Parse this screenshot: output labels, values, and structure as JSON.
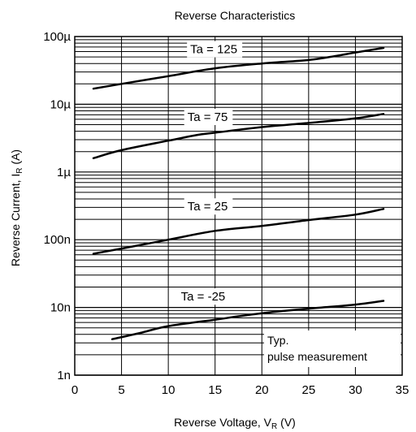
{
  "chart_data": {
    "type": "line",
    "title": "Reverse Characteristics",
    "xlabel": "Reverse Voltage, V",
    "xlabel_sub": "R",
    "xlabel_unit": " (V)",
    "ylabel": "Reverse Current, I",
    "ylabel_sub": "R",
    "ylabel_unit": " (A)",
    "x_scale": "linear",
    "y_scale": "log",
    "xlim": [
      0,
      35
    ],
    "ylim": [
      1e-09,
      0.0001
    ],
    "x_ticks": [
      0,
      5,
      10,
      15,
      20,
      25,
      30,
      35
    ],
    "x_tick_labels": [
      "0",
      "5",
      "10",
      "15",
      "20",
      "25",
      "30",
      "35"
    ],
    "y_ticks": [
      1e-09,
      1e-08,
      1e-07,
      1e-06,
      1e-05,
      0.0001
    ],
    "y_tick_labels": [
      "1n",
      "10n",
      "100n",
      "1µ",
      "10µ",
      "100µ"
    ],
    "grid": true,
    "series": [
      {
        "name": "Ta = 125",
        "x": [
          2,
          5,
          10,
          15,
          20,
          25,
          28,
          30,
          33
        ],
        "y": [
          1.7e-05,
          2e-05,
          2.6e-05,
          3.4e-05,
          4e-05,
          4.5e-05,
          5.2e-05,
          5.8e-05,
          6.8e-05
        ]
      },
      {
        "name": "Ta = 75",
        "x": [
          2,
          5,
          10,
          13,
          15,
          20,
          25,
          30,
          33
        ],
        "y": [
          1.6e-06,
          2.1e-06,
          2.9e-06,
          3.5e-06,
          3.8e-06,
          4.6e-06,
          5.3e-06,
          6.2e-06,
          7.2e-06
        ]
      },
      {
        "name": "Ta = 25",
        "x": [
          2,
          5,
          10,
          15,
          20,
          25,
          30,
          33
        ],
        "y": [
          6.2e-08,
          7.4e-08,
          1e-07,
          1.35e-07,
          1.6e-07,
          1.95e-07,
          2.35e-07,
          2.85e-07
        ]
      },
      {
        "name": "Ta = -25",
        "x": [
          4,
          7,
          10,
          15,
          20,
          25,
          30,
          33
        ],
        "y": [
          3.4e-09,
          4.2e-09,
          5.3e-09,
          6.6e-09,
          8.2e-09,
          9.6e-09,
          1.1e-08,
          1.25e-08
        ]
      }
    ],
    "annotations": [
      "Typ.",
      "pulse measurement"
    ]
  }
}
